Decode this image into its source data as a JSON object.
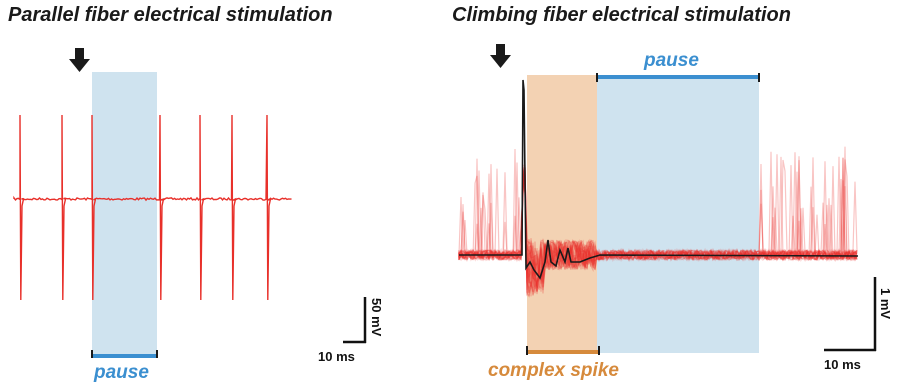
{
  "panels": {
    "left": {
      "title": "Parallel fiber electrical stimulation",
      "pause_label": "pause",
      "scale_time": "10 ms",
      "scale_voltage": "50 mV"
    },
    "right": {
      "title": "Climbing fiber electrical stimulation",
      "pause_label": "pause",
      "complex_spike_label": "complex spike",
      "scale_time": "10 ms",
      "scale_voltage": "1 mV"
    }
  },
  "colors": {
    "trace": "#e8302a",
    "pause_shade": "#cfe3ef",
    "pause_bar": "#3b8fd0",
    "complex_shade": "#f3d2b3",
    "complex_bar": "#d68a3c",
    "average_trace": "#1a1a1a",
    "arrow": "#1a1a1a"
  },
  "icons": [
    "stimulus-arrow-icon",
    "stimulus-arrow-icon"
  ]
}
